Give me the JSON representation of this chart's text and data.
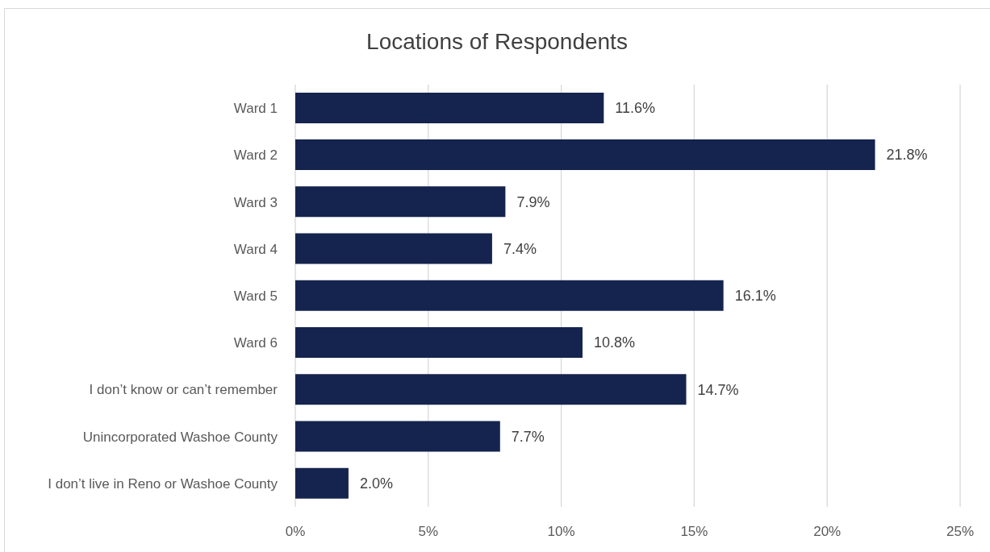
{
  "chart_data": {
    "type": "bar",
    "title": "Locations of Respondents",
    "orientation": "horizontal",
    "categories": [
      "Ward 1",
      "Ward 2",
      "Ward 3",
      "Ward 4",
      "Ward 5",
      "Ward 6",
      "I don’t know or can’t remember",
      "Unincorporated Washoe County",
      "I don’t live in Reno or Washoe County"
    ],
    "values": [
      11.6,
      21.8,
      7.9,
      7.4,
      16.1,
      10.8,
      14.7,
      7.7,
      2.0
    ],
    "value_labels": [
      "11.6%",
      "21.8%",
      "7.9%",
      "7.4%",
      "16.1%",
      "10.8%",
      "14.7%",
      "7.7%",
      "2.0%"
    ],
    "color": "#15244e",
    "xlim": [
      0,
      25
    ],
    "xticks": [
      {
        "value": 0,
        "label": "0%"
      },
      {
        "value": 5,
        "label": "5%"
      },
      {
        "value": 10,
        "label": "10%"
      },
      {
        "value": 15,
        "label": "15%"
      },
      {
        "value": 20,
        "label": "20%"
      },
      {
        "value": 25,
        "label": "25%"
      }
    ],
    "grid": "x"
  }
}
